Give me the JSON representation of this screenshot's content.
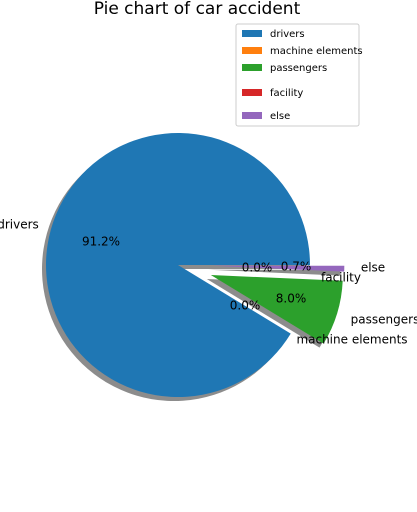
{
  "chart_data": {
    "type": "pie",
    "title": "Pie chart of car accident",
    "categories": [
      "drivers",
      "machine elements",
      "passengers",
      "facility",
      "else"
    ],
    "values": [
      91.2,
      0.0,
      8.0,
      0.0,
      0.7
    ],
    "percent_labels": [
      "91.2%",
      "0.0%",
      "8.0%",
      "0.0%",
      "0.7%"
    ],
    "colors": [
      "#1f77b4",
      "#ff7f0e",
      "#2ca02c",
      "#d62728",
      "#9467bd"
    ],
    "exploded": [
      false,
      true,
      true,
      true,
      true
    ],
    "shadow": true,
    "legend": {
      "position": "top-right",
      "entries": [
        "drivers",
        "machine elements",
        "passengers",
        "facility",
        "else"
      ]
    }
  }
}
